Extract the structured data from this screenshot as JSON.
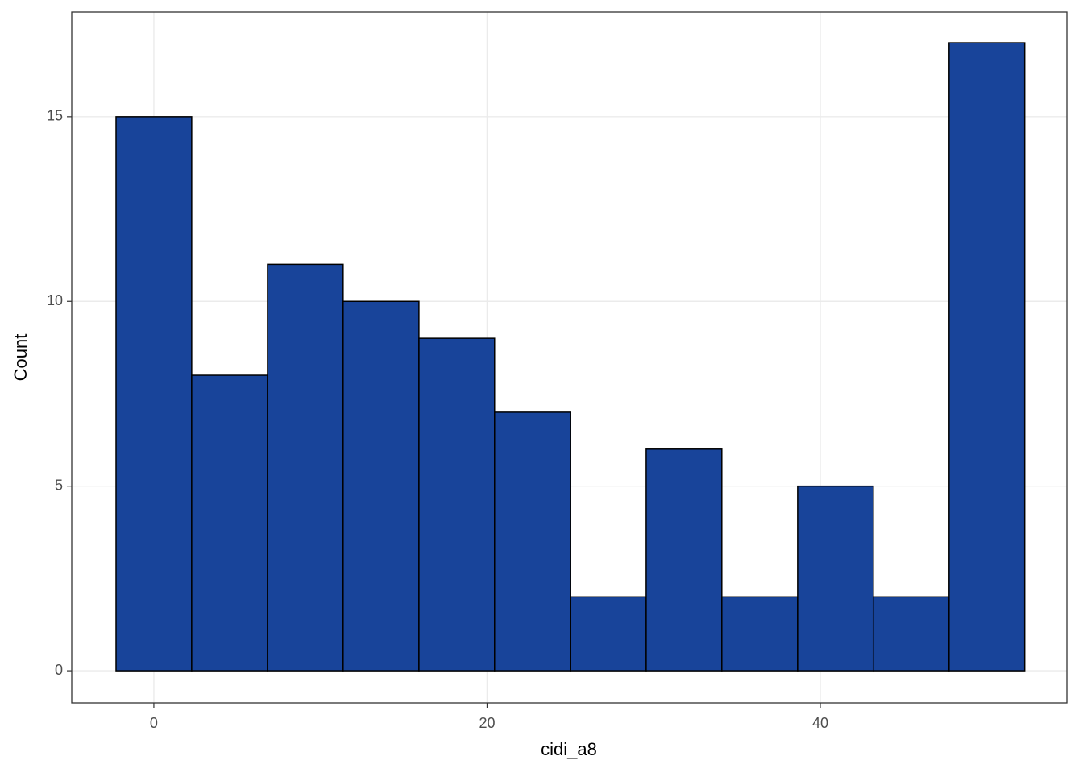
{
  "chart_data": {
    "type": "histogram",
    "x_label": "cidi_a8",
    "y_label": "Count",
    "bins": [
      -2.27,
      2.27,
      6.82,
      11.36,
      15.91,
      20.45,
      25,
      29.55,
      34.09,
      38.64,
      43.18,
      47.73,
      52.27
    ],
    "values": [
      15,
      8,
      11,
      10,
      9,
      7,
      2,
      6,
      2,
      5,
      2,
      17
    ],
    "color": "#18449a",
    "edge_color": "#000000",
    "xlim": [
      -4.93,
      54.8
    ],
    "ylim": [
      -0.87,
      17.83
    ],
    "xticks": [
      0,
      20,
      40
    ],
    "yticks": [
      0,
      5,
      10,
      15
    ],
    "grid": true
  }
}
